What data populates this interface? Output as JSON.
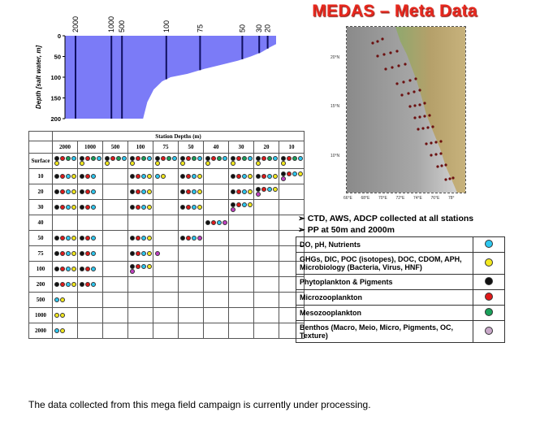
{
  "title": "MEDAS – Meta Data",
  "depth_profile": {
    "ylabel": "Depth [salt water, m]",
    "yticks": [
      "0",
      "50",
      "100",
      "150",
      "200"
    ],
    "station_labels": [
      "2000",
      "1000",
      "500",
      "100",
      "75",
      "50",
      "30",
      "20"
    ],
    "colors": {
      "water": "#7b7bf7",
      "line": "#101060"
    }
  },
  "chart_data": {
    "type": "area",
    "title": "",
    "xlabel": "",
    "ylabel": "Depth [salt water, m]",
    "ylim": [
      0,
      200
    ],
    "yaxis_inverted": true,
    "stations": [
      {
        "label": "2000",
        "pos": 0.05
      },
      {
        "label": "1000",
        "pos": 0.22
      },
      {
        "label": "500",
        "pos": 0.27
      },
      {
        "label": "100",
        "pos": 0.48
      },
      {
        "label": "75",
        "pos": 0.64
      },
      {
        "label": "50",
        "pos": 0.84
      },
      {
        "label": "30",
        "pos": 0.92
      },
      {
        "label": "20",
        "pos": 0.96
      }
    ],
    "bottom_profile": [
      {
        "x": 0.0,
        "depth": 200
      },
      {
        "x": 0.37,
        "depth": 200
      },
      {
        "x": 0.39,
        "depth": 160
      },
      {
        "x": 0.42,
        "depth": 130
      },
      {
        "x": 0.46,
        "depth": 110
      },
      {
        "x": 0.5,
        "depth": 100
      },
      {
        "x": 0.58,
        "depth": 92
      },
      {
        "x": 0.66,
        "depth": 80
      },
      {
        "x": 0.74,
        "depth": 70
      },
      {
        "x": 0.82,
        "depth": 60
      },
      {
        "x": 0.88,
        "depth": 50
      },
      {
        "x": 0.93,
        "depth": 40
      },
      {
        "x": 0.97,
        "depth": 28
      },
      {
        "x": 1.0,
        "depth": 20
      }
    ]
  },
  "station_table": {
    "header": "Station Depths (m)",
    "columns": [
      "2000",
      "1000",
      "500",
      "100",
      "75",
      "50",
      "40",
      "30",
      "20",
      "10"
    ],
    "rows": [
      {
        "label": "Surface",
        "cells": [
          [
            "k",
            "r",
            "g",
            "c",
            "y"
          ],
          [
            "k",
            "r",
            "g",
            "c",
            "y"
          ],
          [
            "k",
            "r",
            "g",
            "c",
            "y"
          ],
          [
            "k",
            "r",
            "g",
            "c",
            "y"
          ],
          [
            "k",
            "r",
            "g",
            "c",
            "y"
          ],
          [
            "k",
            "r",
            "g",
            "c",
            "y"
          ],
          [
            "k",
            "r",
            "g",
            "c",
            "y"
          ],
          [
            "k",
            "r",
            "g",
            "c",
            "y"
          ],
          [
            "k",
            "r",
            "g",
            "c",
            "y"
          ],
          [
            "k",
            "r",
            "g",
            "c",
            "y"
          ]
        ]
      },
      {
        "label": "10",
        "cells": [
          [
            "k",
            "r",
            "c",
            "y"
          ],
          [
            "k",
            "r",
            "c"
          ],
          [],
          [
            "k",
            "r",
            "c",
            "y"
          ],
          [
            "c",
            "y"
          ],
          [
            "k",
            "r",
            "c",
            "y"
          ],
          [],
          [
            "k",
            "r",
            "c",
            "y"
          ],
          [
            "k",
            "r",
            "c",
            "y"
          ],
          [
            "k",
            "r",
            "c",
            "y",
            "m"
          ]
        ]
      },
      {
        "label": "20",
        "cells": [
          [
            "k",
            "r",
            "c",
            "y"
          ],
          [
            "k",
            "r",
            "c"
          ],
          [],
          [
            "k",
            "r",
            "c",
            "y"
          ],
          [],
          [
            "k",
            "r",
            "c",
            "y"
          ],
          [],
          [
            "k",
            "r",
            "c",
            "y"
          ],
          [
            "k",
            "r",
            "c",
            "y",
            "m"
          ],
          []
        ]
      },
      {
        "label": "30",
        "cells": [
          [
            "k",
            "r",
            "c",
            "y"
          ],
          [
            "k",
            "r",
            "c"
          ],
          [],
          [
            "k",
            "r",
            "c",
            "y"
          ],
          [],
          [
            "k",
            "r",
            "c",
            "y"
          ],
          [],
          [
            "k",
            "r",
            "c",
            "y",
            "m"
          ],
          [],
          []
        ]
      },
      {
        "label": "40",
        "cells": [
          [],
          [],
          [],
          [],
          [],
          [],
          [
            "k",
            "r",
            "c",
            "m"
          ],
          [],
          [],
          []
        ]
      },
      {
        "label": "50",
        "cells": [
          [
            "k",
            "r",
            "c",
            "y"
          ],
          [
            "k",
            "r",
            "c"
          ],
          [],
          [
            "k",
            "r",
            "c",
            "y"
          ],
          [],
          [
            "k",
            "r",
            "c",
            "m"
          ],
          [],
          [],
          [],
          []
        ]
      },
      {
        "label": "75",
        "cells": [
          [
            "k",
            "r",
            "c",
            "y"
          ],
          [
            "k",
            "r",
            "c"
          ],
          [],
          [
            "k",
            "r",
            "c",
            "y"
          ],
          [
            "m"
          ],
          [],
          [],
          [],
          [],
          []
        ]
      },
      {
        "label": "100",
        "cells": [
          [
            "k",
            "r",
            "c",
            "y"
          ],
          [
            "k",
            "r",
            "c"
          ],
          [],
          [
            "k",
            "r",
            "c",
            "y",
            "m"
          ],
          [],
          [],
          [],
          [],
          [],
          []
        ]
      },
      {
        "label": "200",
        "cells": [
          [
            "k",
            "r",
            "c",
            "y"
          ],
          [
            "k",
            "r",
            "c"
          ],
          [],
          [],
          [],
          [],
          [],
          [],
          [],
          []
        ]
      },
      {
        "label": "500",
        "cells": [
          [
            "c",
            "y"
          ],
          [],
          [],
          [],
          [],
          [],
          [],
          [],
          [],
          []
        ]
      },
      {
        "label": "1000",
        "cells": [
          [
            "y",
            "y"
          ],
          [],
          [],
          [],
          [],
          [],
          [],
          [],
          [],
          []
        ]
      },
      {
        "label": "2000",
        "cells": [
          [
            "c",
            "y"
          ],
          [],
          [],
          [],
          [],
          [],
          [],
          [],
          [],
          []
        ]
      }
    ],
    "dot_colors": {
      "k": "#111111",
      "r": "#e01a1a",
      "g": "#1aa05a",
      "c": "#2ec8f0",
      "y": "#f2e81e",
      "m": "#c040c0"
    }
  },
  "map": {
    "lat_labels": [
      "20°N",
      "15°N",
      "10°N"
    ],
    "lon_labels": [
      "66°E",
      "68°E",
      "70°E",
      "72°E",
      "74°E",
      "76°E",
      "78°"
    ]
  },
  "notes": [
    "➢ CTD, AWS, ADCP collected at all stations",
    "➢ PP at 50m and 2000m"
  ],
  "legend": [
    {
      "label": "DO, pH, Nutrients",
      "color": "#2ec8f0"
    },
    {
      "label": "GHGs, DIC, POC (isotopes), DOC, CDOM, APH, Microbiology (Bacteria, Virus, HNF)",
      "color": "#f2e81e"
    },
    {
      "label": "Phytoplankton & Pigments",
      "color": "#111111"
    },
    {
      "label": "Microzooplankton",
      "color": "#e01a1a"
    },
    {
      "label": "Mesozooplankton",
      "color": "#1aa05a"
    },
    {
      "label": "Benthos (Macro, Meio, Micro, Pigments, OC, Texture)",
      "color": "#c8a8c8"
    }
  ],
  "footer": "The data collected from this mega field campaign is currently under processing."
}
